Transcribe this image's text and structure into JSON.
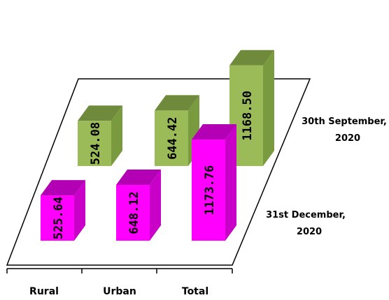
{
  "chart_data": {
    "type": "bar",
    "categories": [
      "Rural",
      "Urban",
      "Total"
    ],
    "series": [
      {
        "name": "30th September, 2020",
        "name_lines": [
          "30th September,",
          "2020"
        ],
        "values": [
          524.08,
          644.42,
          1168.5
        ],
        "labels": [
          "524.08",
          "644.42",
          "1168.50"
        ],
        "color": "#9bbb59",
        "color_top": "#6f8a3a",
        "color_side": "#7a9a40"
      },
      {
        "name": "31st December, 2020",
        "name_lines": [
          "31st December,",
          "2020"
        ],
        "values": [
          525.64,
          648.12,
          1173.76
        ],
        "labels": [
          "525.64",
          "648.12",
          "1173.76"
        ],
        "color": "#ff00ff",
        "color_top": "#b400b4",
        "color_side": "#c800c8"
      }
    ],
    "title": "",
    "xlabel": "",
    "ylabel": "",
    "grid": false,
    "style": "3d-bar"
  }
}
